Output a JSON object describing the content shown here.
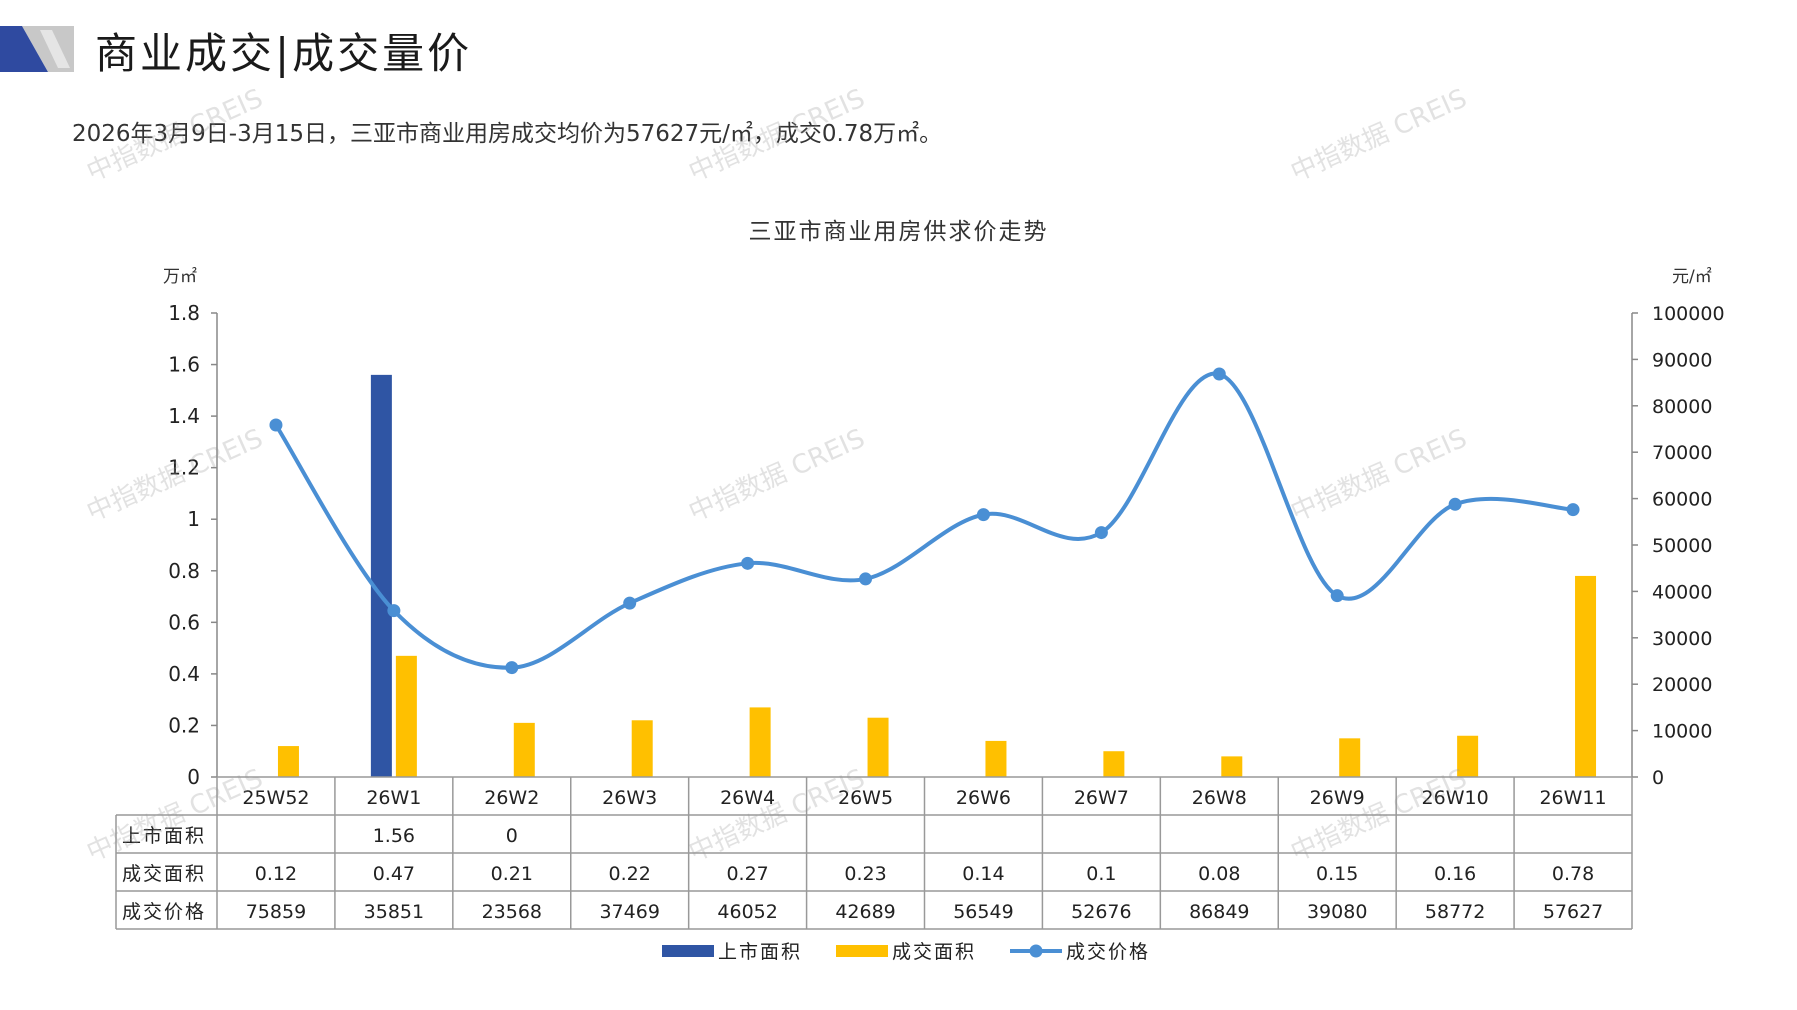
{
  "page": {
    "title": "商业成交|成交量价",
    "summary": "2026年3月9日-3月15日，三亚市商业用房成交均价为57627元/㎡，成交0.78万㎡。",
    "watermark": "中指数据 CREIS"
  },
  "colors": {
    "supply_bar": "#2f55a4",
    "deal_bar": "#ffc000",
    "price_line": "#4a8fd4",
    "axis": "#888888",
    "table_border": "#999999",
    "logo_dark": "#2f4aa0",
    "logo_gray": "#bfbfbf"
  },
  "chart_data": {
    "type": "bar+line",
    "title": "三亚市商业用房供求价走势",
    "left_axis_unit": "万㎡",
    "right_axis_unit": "元/㎡",
    "ylim_left": [
      0,
      1.8
    ],
    "yticks_left": [
      "0",
      "0.2",
      "0.4",
      "0.6",
      "0.8",
      "1",
      "1.2",
      "1.4",
      "1.6",
      "1.8"
    ],
    "ylim_right": [
      0,
      100000
    ],
    "yticks_right": [
      "0",
      "10000",
      "20000",
      "30000",
      "40000",
      "50000",
      "60000",
      "70000",
      "80000",
      "90000",
      "100000"
    ],
    "categories": [
      "25W52",
      "26W1",
      "26W2",
      "26W3",
      "26W4",
      "26W5",
      "26W6",
      "26W7",
      "26W8",
      "26W9",
      "26W10",
      "26W11"
    ],
    "series": [
      {
        "name": "上市面积",
        "type": "bar",
        "axis": "left",
        "values": [
          null,
          1.56,
          0,
          null,
          null,
          null,
          null,
          null,
          null,
          null,
          null,
          null
        ],
        "labels": [
          "",
          "1.56",
          "0",
          "",
          "",
          "",
          "",
          "",
          "",
          "",
          "",
          ""
        ]
      },
      {
        "name": "成交面积",
        "type": "bar",
        "axis": "left",
        "values": [
          0.12,
          0.47,
          0.21,
          0.22,
          0.27,
          0.23,
          0.14,
          0.1,
          0.08,
          0.15,
          0.16,
          0.78
        ],
        "labels": [
          "0.12",
          "0.47",
          "0.21",
          "0.22",
          "0.27",
          "0.23",
          "0.14",
          "0.1",
          "0.08",
          "0.15",
          "0.16",
          "0.78"
        ]
      },
      {
        "name": "成交价格",
        "type": "line",
        "axis": "right",
        "values": [
          75859,
          35851,
          23568,
          37469,
          46052,
          42689,
          56549,
          52676,
          86849,
          39080,
          58772,
          57627
        ],
        "labels": [
          "75859",
          "35851",
          "23568",
          "37469",
          "46052",
          "42689",
          "56549",
          "52676",
          "86849",
          "39080",
          "58772",
          "57627"
        ]
      }
    ],
    "legend_position": "bottom",
    "data_table": true
  }
}
